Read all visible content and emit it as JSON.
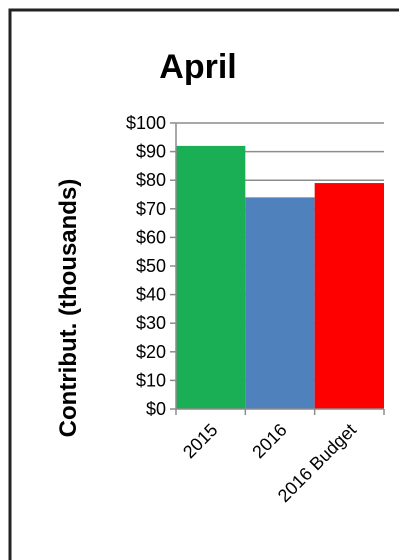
{
  "chart_data": {
    "type": "bar",
    "title": "April",
    "ylabel": "Contribut. (thousands)",
    "xlabel": "",
    "categories": [
      "2015",
      "2016",
      "2016 Budget"
    ],
    "values": [
      92,
      74,
      79
    ],
    "bar_colors": [
      "#1aaf54",
      "#4f81bd",
      "#ff0000"
    ],
    "ylim": [
      0,
      100
    ],
    "yticks": [
      0,
      10,
      20,
      30,
      40,
      50,
      60,
      70,
      80,
      90,
      100
    ],
    "ytick_labels": [
      "$0",
      "$10",
      "$20",
      "$30",
      "$40",
      "$50",
      "$60",
      "$70",
      "$80",
      "$90",
      "$100"
    ],
    "grid": true,
    "legend": "none"
  }
}
